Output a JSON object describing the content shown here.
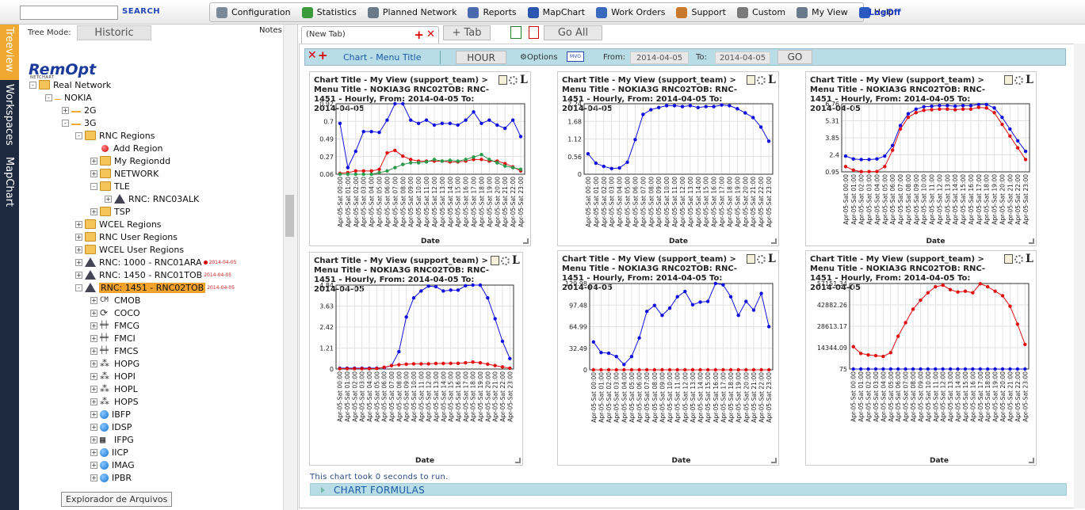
{
  "search": {
    "placeholder": "",
    "button_label": "SEARCH"
  },
  "menu": [
    {
      "label": "Configuration",
      "icon": "configuration-icon",
      "color": "#7a8a9a"
    },
    {
      "label": "Statistics",
      "icon": "statistics-icon",
      "color": "#3c9a3c"
    },
    {
      "label": "Planned Network",
      "icon": "planned-network-icon",
      "color": "#6a7a8a"
    },
    {
      "label": "Reports",
      "icon": "reports-icon",
      "color": "#4a6ab0"
    },
    {
      "label": "MapChart",
      "icon": "mapchart-icon",
      "color": "#2a56b0"
    },
    {
      "label": "Work Orders",
      "icon": "work-orders-icon",
      "color": "#3a6ac0"
    },
    {
      "label": "Support",
      "icon": "support-icon",
      "color": "#c87a2a"
    },
    {
      "label": "Custom",
      "icon": "custom-icon",
      "color": "#7a7a7a"
    },
    {
      "label": "My View",
      "icon": "my-view-icon",
      "color": "#6a7a8a"
    },
    {
      "label": "Help",
      "icon": "help-icon",
      "color": "#2a5ac0"
    }
  ],
  "logoff_label": "LogOff",
  "vertical_tabs": [
    "Treeview",
    "Workspaces",
    "MapChart"
  ],
  "sidebar": {
    "tree_mode_label": "Tree Mode:",
    "tree_mode_value": "Historic",
    "notes_label": "Notes",
    "logo": "RemOpt",
    "logo_sub": "NETCHART",
    "tree": [
      {
        "label": "Real Network",
        "indent": 0,
        "icon": "folder",
        "tw": "-"
      },
      {
        "label": "NOKIA",
        "indent": 1,
        "icon": "none",
        "tw": "-"
      },
      {
        "label": "2G",
        "indent": 2,
        "icon": "2g",
        "tw": "+"
      },
      {
        "label": "3G",
        "indent": 2,
        "icon": "3g",
        "tw": "-"
      },
      {
        "label": "RNC Regions",
        "indent": 3,
        "icon": "folder",
        "tw": "-"
      },
      {
        "label": "Add Region",
        "indent": 4,
        "icon": "redball",
        "tw": ""
      },
      {
        "label": "My Regiondd",
        "indent": 4,
        "icon": "folder",
        "tw": "+"
      },
      {
        "label": "NETWORK",
        "indent": 4,
        "icon": "folder",
        "tw": "+"
      },
      {
        "label": "TLE",
        "indent": 4,
        "icon": "folder",
        "tw": "-"
      },
      {
        "label": "RNC: RNC03ALK",
        "indent": 5,
        "icon": "tri",
        "tw": "+"
      },
      {
        "label": "TSP",
        "indent": 4,
        "icon": "folder",
        "tw": "+"
      },
      {
        "label": "WCEL Regions",
        "indent": 3,
        "icon": "folder",
        "tw": "+"
      },
      {
        "label": "RNC User Regions",
        "indent": 3,
        "icon": "folder",
        "tw": "+"
      },
      {
        "label": "WCEL User Regions",
        "indent": 3,
        "icon": "folder",
        "tw": "+"
      },
      {
        "label": "RNC: 1000 - RNC01ARA",
        "indent": 3,
        "icon": "tri",
        "tw": "+",
        "badge": "2014-04-05",
        "dot": true
      },
      {
        "label": "RNC: 1450 - RNC01TOB",
        "indent": 3,
        "icon": "tri",
        "tw": "+",
        "badge": "2014-04-05"
      },
      {
        "label": "RNC: 1451 - RNC02TOB",
        "indent": 3,
        "icon": "tri",
        "tw": "-",
        "badge": "2014-04-05",
        "selected": true
      },
      {
        "label": "CMOB",
        "indent": 4,
        "icon": "cm",
        "tw": "+"
      },
      {
        "label": "COCO",
        "indent": 4,
        "icon": "coco",
        "tw": "+"
      },
      {
        "label": "FMCG",
        "indent": 4,
        "icon": "fm",
        "tw": "+"
      },
      {
        "label": "FMCI",
        "indent": 4,
        "icon": "fm",
        "tw": "+"
      },
      {
        "label": "FMCS",
        "indent": 4,
        "icon": "fm",
        "tw": "+"
      },
      {
        "label": "HOPG",
        "indent": 4,
        "icon": "ho",
        "tw": "+"
      },
      {
        "label": "HOPI",
        "indent": 4,
        "icon": "ho",
        "tw": "+"
      },
      {
        "label": "HOPL",
        "indent": 4,
        "icon": "ho",
        "tw": "+"
      },
      {
        "label": "HOPS",
        "indent": 4,
        "icon": "ho",
        "tw": "+"
      },
      {
        "label": "IBFP",
        "indent": 4,
        "icon": "blueball",
        "tw": "+"
      },
      {
        "label": "IDSP",
        "indent": 4,
        "icon": "blueball",
        "tw": "+"
      },
      {
        "label": "IFPG",
        "indent": 4,
        "icon": "ifpg",
        "tw": "+"
      },
      {
        "label": "IICP",
        "indent": 4,
        "icon": "blueball",
        "tw": "+"
      },
      {
        "label": "IMAG",
        "indent": 4,
        "icon": "blueball",
        "tw": "+"
      },
      {
        "label": "IPBR",
        "indent": 4,
        "icon": "blueball",
        "tw": "+"
      }
    ],
    "tooltip": "Explorador de Arquivos"
  },
  "tabs": {
    "active_label": "(New Tab)",
    "add_label": "+ Tab",
    "go_all_label": "Go All"
  },
  "toolbar": {
    "title": "Chart - Menu Title",
    "granularity": "HOUR",
    "options_label": "Options",
    "mvo_label": "MVO",
    "from_label": "From:",
    "from_value": "2014-04-05",
    "to_label": "To:",
    "to_value": "2014-04-05",
    "go_label": "GO"
  },
  "took_text": "This chart took 0 seconds to run.",
  "formulas_label": "CHART FORMULAS",
  "colors": {
    "blue": "#1010e0",
    "red": "#e01010",
    "green": "#2a9a4a"
  },
  "chart_data": [
    {
      "type": "line",
      "title": "Chart Title - My View (support_team) > Menu Title - NOKIA3G RNC02TOB: RNC-1451 - Hourly, From: 2014-04-05 To: 2014-04-05",
      "xlabel": "Date",
      "ylabel": "",
      "x": [
        "Apr-05-Sat 00:00",
        "Apr-05-Sat 01:00",
        "Apr-05-Sat 02:00",
        "Apr-05-Sat 03:00",
        "Apr-05-Sat 04:00",
        "Apr-05-Sat 05:00",
        "Apr-05-Sat 06:00",
        "Apr-05-Sat 07:00",
        "Apr-05-Sat 08:00",
        "Apr-05-Sat 09:00",
        "Apr-05-Sat 10:00",
        "Apr-05-Sat 11:00",
        "Apr-05-Sat 12:00",
        "Apr-05-Sat 13:00",
        "Apr-05-Sat 14:00",
        "Apr-05-Sat 15:00",
        "Apr-05-Sat 16:00",
        "Apr-05-Sat 17:00",
        "Apr-05-Sat 18:00",
        "Apr-05-Sat 19:00",
        "Apr-05-Sat 20:00",
        "Apr-05-Sat 21:00",
        "Apr-05-Sat 22:00",
        "Apr-05-Sat 23:00"
      ],
      "yticks": [
        "0.92",
        "0.7",
        "0.49",
        "0.27",
        "0.06"
      ],
      "ylim": [
        0.06,
        0.92
      ],
      "series": [
        {
          "color": "#1010e0",
          "values": [
            0.68,
            0.14,
            0.34,
            0.58,
            0.58,
            0.57,
            0.72,
            0.92,
            0.92,
            0.72,
            0.68,
            0.72,
            0.66,
            0.68,
            0.68,
            0.66,
            0.72,
            0.82,
            0.68,
            0.72,
            0.66,
            0.62,
            0.72,
            0.52
          ]
        },
        {
          "color": "#e01010",
          "values": [
            0.07,
            0.08,
            0.1,
            0.1,
            0.1,
            0.12,
            0.32,
            0.35,
            0.28,
            0.24,
            0.22,
            0.22,
            0.22,
            0.22,
            0.21,
            0.21,
            0.22,
            0.24,
            0.24,
            0.22,
            0.22,
            0.19,
            0.15,
            0.1
          ]
        },
        {
          "color": "#2a9a4a",
          "values": [
            0.06,
            0.06,
            0.06,
            0.06,
            0.06,
            0.08,
            0.1,
            0.14,
            0.18,
            0.2,
            0.2,
            0.21,
            0.24,
            0.22,
            0.23,
            0.22,
            0.24,
            0.27,
            0.3,
            0.24,
            0.2,
            0.16,
            0.14,
            0.12
          ]
        }
      ]
    },
    {
      "type": "line",
      "title": "Chart Title - My View (support_team) > Menu Title - NOKIA3G RNC02TOB: RNC-1451 - Hourly, From: 2014-04-05 To: 2014-04-05",
      "xlabel": "Date",
      "ylabel": "",
      "x": [
        "Apr-05-Sat 00:00",
        "Apr-05-Sat 01:00",
        "Apr-05-Sat 02:00",
        "Apr-05-Sat 03:00",
        "Apr-05-Sat 04:00",
        "Apr-05-Sat 05:00",
        "Apr-05-Sat 06:00",
        "Apr-05-Sat 07:00",
        "Apr-05-Sat 08:00",
        "Apr-05-Sat 09:00",
        "Apr-05-Sat 10:00",
        "Apr-05-Sat 11:00",
        "Apr-05-Sat 12:00",
        "Apr-05-Sat 13:00",
        "Apr-05-Sat 14:00",
        "Apr-05-Sat 15:00",
        "Apr-05-Sat 16:00",
        "Apr-05-Sat 17:00",
        "Apr-05-Sat 18:00",
        "Apr-05-Sat 19:00",
        "Apr-05-Sat 20:00",
        "Apr-05-Sat 21:00",
        "Apr-05-Sat 22:00",
        "Apr-05-Sat 23:00"
      ],
      "yticks": [
        "2.24",
        "1.68",
        "1.12",
        "0.56",
        "0"
      ],
      "ylim": [
        0,
        2.24
      ],
      "series": [
        {
          "color": "#1010e0",
          "values": [
            0.65,
            0.35,
            0.25,
            0.18,
            0.2,
            0.38,
            1.1,
            1.9,
            2.05,
            2.12,
            2.18,
            2.18,
            2.15,
            2.18,
            2.12,
            2.15,
            2.15,
            2.2,
            2.18,
            2.08,
            1.95,
            1.8,
            1.5,
            1.05
          ]
        }
      ]
    },
    {
      "type": "line",
      "title": "Chart Title - My View (support_team) > Menu Title - NOKIA3G RNC02TOB: RNC-1451 - Hourly, From: 2014-04-05 To: 2014-04-05",
      "xlabel": "Date",
      "ylabel": "",
      "x": [
        "Apr-05-Sat 00:00",
        "Apr-05-Sat 01:00",
        "Apr-05-Sat 02:00",
        "Apr-05-Sat 03:00",
        "Apr-05-Sat 04:00",
        "Apr-05-Sat 05:00",
        "Apr-05-Sat 06:00",
        "Apr-05-Sat 07:00",
        "Apr-05-Sat 08:00",
        "Apr-05-Sat 09:00",
        "Apr-05-Sat 10:00",
        "Apr-05-Sat 11:00",
        "Apr-05-Sat 12:00",
        "Apr-05-Sat 13:00",
        "Apr-05-Sat 14:00",
        "Apr-05-Sat 15:00",
        "Apr-05-Sat 16:00",
        "Apr-05-Sat 17:00",
        "Apr-05-Sat 18:00",
        "Apr-05-Sat 19:00",
        "Apr-05-Sat 20:00",
        "Apr-05-Sat 21:00",
        "Apr-05-Sat 22:00",
        "Apr-05-Sat 23:00"
      ],
      "yticks": [
        "6.76",
        "5.31",
        "3.85",
        "2.4",
        "0.95"
      ],
      "ylim": [
        0.95,
        6.76
      ],
      "series": [
        {
          "color": "#1010e0",
          "values": [
            2.3,
            2.05,
            2.0,
            2.0,
            2.05,
            2.3,
            3.2,
            4.9,
            5.9,
            6.3,
            6.5,
            6.55,
            6.6,
            6.6,
            6.55,
            6.6,
            6.6,
            6.7,
            6.7,
            6.4,
            5.6,
            4.6,
            3.6,
            2.7
          ]
        },
        {
          "color": "#e01010",
          "values": [
            1.4,
            1.1,
            0.97,
            0.97,
            0.98,
            1.4,
            2.8,
            4.6,
            5.6,
            6.0,
            6.2,
            6.25,
            6.3,
            6.3,
            6.25,
            6.3,
            6.3,
            6.45,
            6.4,
            6.0,
            5.0,
            4.0,
            3.0,
            2.0
          ]
        }
      ]
    },
    {
      "type": "line",
      "title": "Chart Title - My View (support_team) > Menu Title - NOKIA3G RNC02TOB: RNC-1451 - Hourly, From: 2014-04-05 To: 2014-04-05",
      "xlabel": "Date",
      "ylabel": "",
      "x": [
        "Apr-05-Sat 00:00",
        "Apr-05-Sat 01:00",
        "Apr-05-Sat 02:00",
        "Apr-05-Sat 03:00",
        "Apr-05-Sat 04:00",
        "Apr-05-Sat 05:00",
        "Apr-05-Sat 06:00",
        "Apr-05-Sat 07:00",
        "Apr-05-Sat 08:00",
        "Apr-05-Sat 09:00",
        "Apr-05-Sat 10:00",
        "Apr-05-Sat 11:00",
        "Apr-05-Sat 12:00",
        "Apr-05-Sat 13:00",
        "Apr-05-Sat 14:00",
        "Apr-05-Sat 15:00",
        "Apr-05-Sat 16:00",
        "Apr-05-Sat 17:00",
        "Apr-05-Sat 18:00",
        "Apr-05-Sat 19:00",
        "Apr-05-Sat 20:00",
        "Apr-05-Sat 21:00",
        "Apr-05-Sat 22:00",
        "Apr-05-Sat 23:00"
      ],
      "yticks": [
        "4.84",
        "3.63",
        "2.42",
        "1.21",
        "0"
      ],
      "ylim": [
        0,
        4.84
      ],
      "series": [
        {
          "color": "#1010e0",
          "values": [
            0.05,
            0.05,
            0.05,
            0.05,
            0.05,
            0.05,
            0.08,
            0.2,
            1.0,
            3.0,
            4.1,
            4.5,
            4.78,
            4.75,
            4.5,
            4.55,
            4.55,
            4.8,
            4.84,
            4.84,
            4.1,
            2.9,
            1.6,
            0.6
          ]
        },
        {
          "color": "#e01010",
          "values": [
            0.02,
            0.02,
            0.02,
            0.02,
            0.02,
            0.03,
            0.1,
            0.2,
            0.25,
            0.28,
            0.3,
            0.3,
            0.3,
            0.32,
            0.32,
            0.33,
            0.33,
            0.36,
            0.4,
            0.36,
            0.28,
            0.2,
            0.12,
            0.05
          ]
        }
      ]
    },
    {
      "type": "line",
      "title": "Chart Title - My View (support_team) > Menu Title - NOKIA3G RNC02TOB: RNC-1451 - Hourly, From: 2014-04-05 To: 2014-04-05",
      "xlabel": "Date",
      "ylabel": "",
      "x": [
        "Apr-05-Sat 00:00",
        "Apr-05-Sat 01:00",
        "Apr-05-Sat 02:00",
        "Apr-05-Sat 03:00",
        "Apr-05-Sat 04:00",
        "Apr-05-Sat 05:00",
        "Apr-05-Sat 06:00",
        "Apr-05-Sat 07:00",
        "Apr-05-Sat 08:00",
        "Apr-05-Sat 09:00",
        "Apr-05-Sat 10:00",
        "Apr-05-Sat 11:00",
        "Apr-05-Sat 12:00",
        "Apr-05-Sat 13:00",
        "Apr-05-Sat 14:00",
        "Apr-05-Sat 15:00",
        "Apr-05-Sat 16:00",
        "Apr-05-Sat 17:00",
        "Apr-05-Sat 18:00",
        "Apr-05-Sat 19:00",
        "Apr-05-Sat 20:00",
        "Apr-05-Sat 21:00",
        "Apr-05-Sat 22:00",
        "Apr-05-Sat 23:00"
      ],
      "yticks": [
        "129.98",
        "97.48",
        "64.99",
        "32.49",
        "0"
      ],
      "ylim": [
        0,
        129.98
      ],
      "series": [
        {
          "color": "#1010e0",
          "values": [
            42,
            26,
            25,
            20,
            8,
            20,
            48,
            88,
            97,
            82,
            93,
            110,
            118,
            98,
            102,
            103,
            130,
            128,
            110,
            82,
            103,
            90,
            115,
            65
          ]
        },
        {
          "color": "#e01010",
          "values": [
            0,
            0,
            0,
            0,
            0,
            0,
            0,
            0,
            0,
            0,
            0,
            0,
            0,
            0,
            0,
            0,
            0,
            0,
            0,
            0,
            0,
            0,
            0,
            0
          ]
        }
      ]
    },
    {
      "type": "line",
      "title": "Chart Title - My View (support_team) > Menu Title - NOKIA3G RNC02TOB: RNC-1451 - Hourly, From: 2014-04-05 To: 2014-04-05",
      "xlabel": "Date",
      "ylabel": "",
      "x": [
        "Apr-05-Sat 00:00",
        "Apr-05-Sat 01:00",
        "Apr-05-Sat 02:00",
        "Apr-05-Sat 03:00",
        "Apr-05-Sat 04:00",
        "Apr-05-Sat 05:00",
        "Apr-05-Sat 06:00",
        "Apr-05-Sat 07:00",
        "Apr-05-Sat 08:00",
        "Apr-05-Sat 09:00",
        "Apr-05-Sat 10:00",
        "Apr-05-Sat 11:00",
        "Apr-05-Sat 12:00",
        "Apr-05-Sat 13:00",
        "Apr-05-Sat 14:00",
        "Apr-05-Sat 15:00",
        "Apr-05-Sat 16:00",
        "Apr-05-Sat 17:00",
        "Apr-05-Sat 18:00",
        "Apr-05-Sat 19:00",
        "Apr-05-Sat 20:00",
        "Apr-05-Sat 21:00",
        "Apr-05-Sat 22:00",
        "Apr-05-Sat 23:00"
      ],
      "yticks": [
        "57151.34",
        "42882.26",
        "28613.17",
        "14344.09",
        "75"
      ],
      "ylim": [
        75,
        57151.34
      ],
      "series": [
        {
          "color": "#e01010",
          "values": [
            15000,
            10500,
            9500,
            9000,
            8500,
            11000,
            22000,
            31000,
            40000,
            46000,
            51000,
            55000,
            56000,
            53000,
            51500,
            52000,
            51000,
            57000,
            55000,
            52000,
            49000,
            42000,
            30000,
            16500
          ]
        },
        {
          "color": "#1010e0",
          "values": [
            75,
            75,
            75,
            75,
            75,
            75,
            75,
            75,
            75,
            75,
            75,
            75,
            75,
            75,
            75,
            75,
            75,
            75,
            75,
            75,
            75,
            75,
            75,
            75
          ]
        }
      ]
    }
  ]
}
